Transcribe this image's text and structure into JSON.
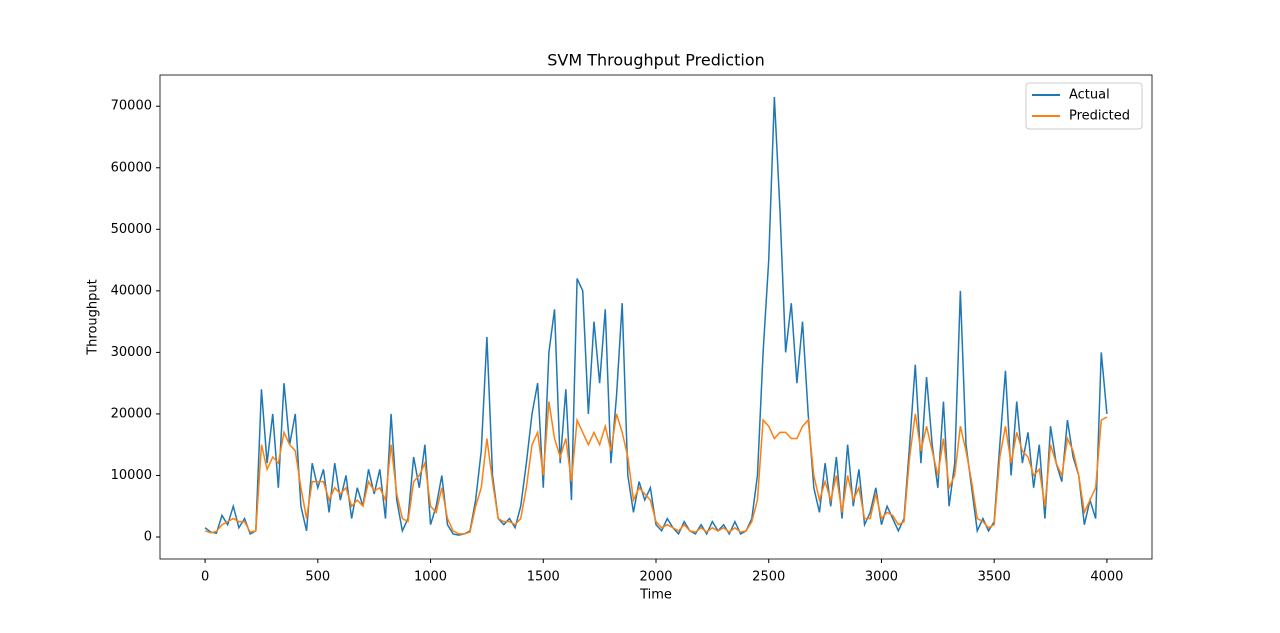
{
  "chart_data": {
    "type": "line",
    "title": "SVM Throughput Prediction",
    "x_label": "Time",
    "y_label": "Throughput",
    "x": [
      0,
      25,
      50,
      75,
      100,
      125,
      150,
      175,
      200,
      225,
      250,
      275,
      300,
      325,
      350,
      375,
      400,
      425,
      450,
      475,
      500,
      525,
      550,
      575,
      600,
      625,
      650,
      675,
      700,
      725,
      750,
      775,
      800,
      825,
      850,
      875,
      900,
      925,
      950,
      975,
      1000,
      1025,
      1050,
      1075,
      1100,
      1125,
      1150,
      1175,
      1200,
      1225,
      1250,
      1275,
      1300,
      1325,
      1350,
      1375,
      1400,
      1425,
      1450,
      1475,
      1500,
      1525,
      1550,
      1575,
      1600,
      1625,
      1650,
      1675,
      1700,
      1725,
      1750,
      1775,
      1800,
      1825,
      1850,
      1875,
      1900,
      1925,
      1950,
      1975,
      2000,
      2025,
      2050,
      2075,
      2100,
      2125,
      2150,
      2175,
      2200,
      2225,
      2250,
      2275,
      2300,
      2325,
      2350,
      2375,
      2400,
      2425,
      2450,
      2475,
      2500,
      2525,
      2550,
      2575,
      2600,
      2625,
      2650,
      2675,
      2700,
      2725,
      2750,
      2775,
      2800,
      2825,
      2850,
      2875,
      2900,
      2925,
      2950,
      2975,
      3000,
      3025,
      3050,
      3075,
      3100,
      3125,
      3150,
      3175,
      3200,
      3225,
      3250,
      3275,
      3300,
      3325,
      3350,
      3375,
      3400,
      3425,
      3450,
      3475,
      3500,
      3525,
      3550,
      3575,
      3600,
      3625,
      3650,
      3675,
      3700,
      3725,
      3750,
      3775,
      3800,
      3825,
      3850,
      3875,
      3900,
      3925,
      3950,
      3975,
      4000
    ],
    "series": [
      {
        "name": "Actual",
        "color": "#1f77b4",
        "values": [
          1500,
          800,
          600,
          3500,
          2000,
          5000,
          1500,
          3000,
          500,
          1000,
          24000,
          12000,
          20000,
          8000,
          25000,
          15000,
          20000,
          5000,
          1000,
          12000,
          8000,
          11000,
          4000,
          12000,
          6000,
          10000,
          3000,
          8000,
          5000,
          11000,
          7000,
          11000,
          3000,
          20000,
          6000,
          1000,
          3000,
          13000,
          8000,
          15000,
          2000,
          5000,
          10000,
          2000,
          500,
          300,
          500,
          1000,
          6000,
          14000,
          32500,
          10000,
          3000,
          2000,
          3000,
          1500,
          5000,
          12000,
          20000,
          25000,
          8000,
          30000,
          37000,
          12000,
          24000,
          6000,
          42000,
          40000,
          20000,
          35000,
          25000,
          37000,
          12000,
          23000,
          38000,
          10000,
          4000,
          9000,
          6000,
          8000,
          2000,
          1000,
          3000,
          1500,
          500,
          2500,
          1000,
          500,
          2000,
          500,
          2500,
          1000,
          2000,
          500,
          2500,
          500,
          1000,
          3000,
          10000,
          30000,
          45000,
          71500,
          53000,
          30000,
          38000,
          25000,
          35000,
          20000,
          8000,
          4000,
          12000,
          5000,
          13000,
          3000,
          15000,
          5000,
          11000,
          2000,
          4000,
          8000,
          2000,
          5000,
          3000,
          1000,
          3000,
          15000,
          28000,
          12000,
          26000,
          15000,
          8000,
          22000,
          5000,
          12000,
          40000,
          15000,
          8000,
          1000,
          3000,
          1000,
          2500,
          15000,
          27000,
          10000,
          22000,
          12000,
          17000,
          8000,
          15000,
          3000,
          18000,
          12000,
          9000,
          19000,
          13000,
          10000,
          2000,
          6000,
          3000,
          30000,
          20000
        ]
      },
      {
        "name": "Predicted",
        "color": "#ff7f0e",
        "values": [
          1000,
          700,
          900,
          2000,
          2500,
          3000,
          2500,
          2500,
          800,
          1000,
          15000,
          11000,
          13000,
          12000,
          17000,
          15000,
          14000,
          8000,
          3000,
          9000,
          9000,
          9000,
          6000,
          8000,
          7000,
          8000,
          5000,
          6000,
          5000,
          9000,
          7500,
          8000,
          6000,
          15000,
          7000,
          3000,
          2500,
          9000,
          10000,
          12000,
          5000,
          4000,
          8000,
          3000,
          1000,
          500,
          500,
          800,
          5000,
          8000,
          16000,
          9000,
          3000,
          2500,
          2500,
          2000,
          3000,
          8000,
          15000,
          17000,
          10000,
          22000,
          16000,
          13000,
          16000,
          9000,
          19000,
          17000,
          15000,
          17000,
          15000,
          18000,
          14000,
          20000,
          17000,
          13000,
          6000,
          8000,
          7000,
          6000,
          2500,
          1500,
          2000,
          1500,
          1000,
          2000,
          1000,
          800,
          1500,
          800,
          1500,
          1000,
          1500,
          800,
          1500,
          800,
          1000,
          2500,
          6000,
          19000,
          18000,
          16000,
          17000,
          17000,
          16000,
          16000,
          18000,
          19000,
          10000,
          6000,
          9000,
          6000,
          10000,
          4000,
          10000,
          6000,
          8000,
          3000,
          3000,
          7000,
          3000,
          4000,
          3500,
          2000,
          2500,
          13000,
          20000,
          14000,
          18000,
          14000,
          10000,
          16000,
          8000,
          10000,
          18000,
          14000,
          9000,
          3000,
          2500,
          1500,
          2000,
          13000,
          18000,
          12000,
          17000,
          14000,
          13000,
          10000,
          11000,
          5000,
          15000,
          12000,
          10000,
          16000,
          14000,
          10000,
          4000,
          6000,
          8000,
          19000,
          19500
        ]
      }
    ],
    "xlim": [
      -200,
      4200
    ],
    "ylim": [
      -3575,
      75075
    ],
    "xticks": [
      0,
      500,
      1000,
      1500,
      2000,
      2500,
      3000,
      3500,
      4000
    ],
    "yticks": [
      0,
      10000,
      20000,
      30000,
      40000,
      50000,
      60000,
      70000
    ],
    "legend": "upper right"
  }
}
